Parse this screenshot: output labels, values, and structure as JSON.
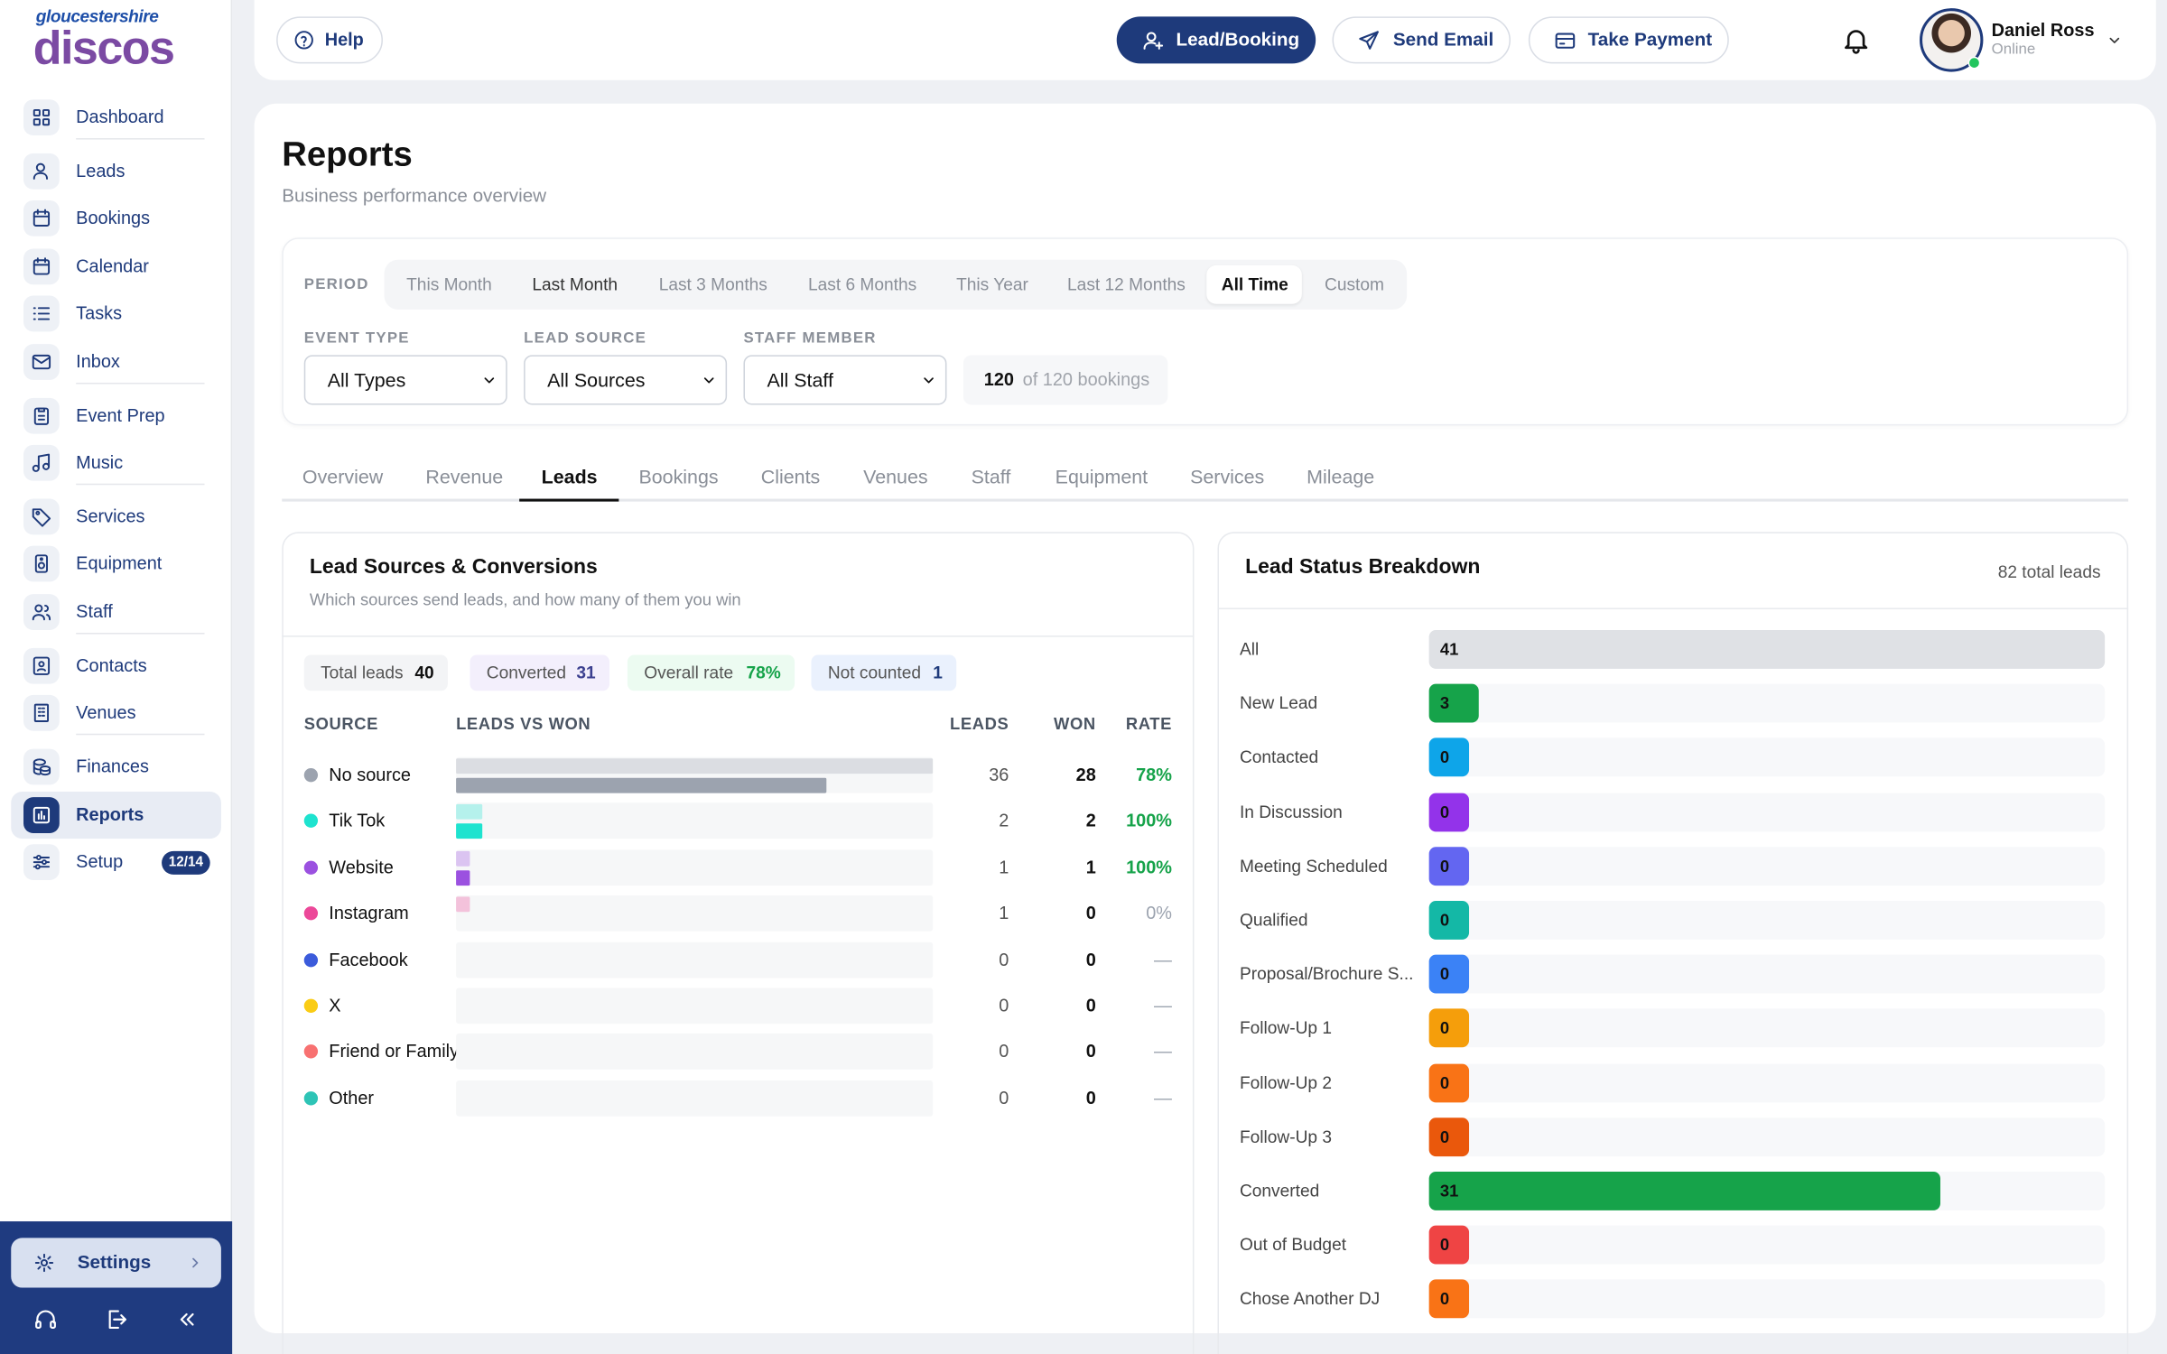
{
  "sidebar": {
    "logo": {
      "line1": "gloucestershire",
      "line2": "discos"
    },
    "nav": [
      [
        {
          "label": "Dashboard"
        }
      ],
      [
        {
          "label": "Leads"
        },
        {
          "label": "Bookings"
        },
        {
          "label": "Calendar"
        },
        {
          "label": "Tasks"
        },
        {
          "label": "Inbox"
        }
      ],
      [
        {
          "label": "Event Prep"
        },
        {
          "label": "Music"
        }
      ],
      [
        {
          "label": "Services"
        },
        {
          "label": "Equipment"
        },
        {
          "label": "Staff"
        }
      ],
      [
        {
          "label": "Contacts"
        },
        {
          "label": "Venues"
        }
      ],
      [
        {
          "label": "Finances"
        },
        {
          "label": "Reports"
        },
        {
          "label": "Setup",
          "badge": "12/14"
        }
      ]
    ],
    "footer": {
      "settings": "Settings"
    }
  },
  "header": {
    "help": "Help",
    "actions": [
      "Lead/Booking",
      "Send Email",
      "Take Payment"
    ],
    "user": {
      "name": "Daniel Ross",
      "status": "Online"
    }
  },
  "page": {
    "title": "Reports",
    "subtitle": "Business performance overview"
  },
  "filters": {
    "period_label": "PERIOD",
    "periods": [
      "This Month",
      "Last Month",
      "Last 3 Months",
      "Last 6 Months",
      "This Year",
      "Last 12 Months",
      "All Time",
      "Custom"
    ],
    "dropdowns": [
      {
        "label": "EVENT TYPE",
        "value": "All Types"
      },
      {
        "label": "LEAD SOURCE",
        "value": "All Sources"
      },
      {
        "label": "STAFF MEMBER",
        "value": "All Staff"
      }
    ],
    "count": 120,
    "count_text": "of 120 bookings"
  },
  "tabs": [
    "Overview",
    "Revenue",
    "Leads",
    "Bookings",
    "Clients",
    "Venues",
    "Staff",
    "Equipment",
    "Services",
    "Mileage"
  ],
  "lead_sources": {
    "title": "Lead Sources & Conversions",
    "subtitle": "Which sources send leads, and how many of them you win",
    "chips": [
      {
        "label": "Total leads",
        "value": 40
      },
      {
        "label": "Converted",
        "value": 31
      },
      {
        "label": "Overall rate",
        "value": "78%"
      },
      {
        "label": "Not counted",
        "value": 1
      }
    ],
    "columns": [
      "SOURCE",
      "LEADS VS WON",
      "LEADS",
      "WON",
      "RATE"
    ],
    "rows": [
      {
        "source": "No source",
        "color": "#9ca3af",
        "leads": 36,
        "won": 28,
        "rate": "78%"
      },
      {
        "source": "Tik Tok",
        "color": "#1ee3cf",
        "leads": 2,
        "won": 2,
        "rate": "100%"
      },
      {
        "source": "Website",
        "color": "#9b51e0",
        "leads": 1,
        "won": 1,
        "rate": "100%"
      },
      {
        "source": "Instagram",
        "color": "#ec4899",
        "leads": 1,
        "won": 0,
        "rate": "0%"
      },
      {
        "source": "Facebook",
        "color": "#3b5bdb",
        "leads": 0,
        "won": 0,
        "rate": "—"
      },
      {
        "source": "X",
        "color": "#facc15",
        "leads": 0,
        "won": 0,
        "rate": "—"
      },
      {
        "source": "Friend or Family",
        "color": "#f87171",
        "leads": 0,
        "won": 0,
        "rate": "—"
      },
      {
        "source": "Other",
        "color": "#2ec4b6",
        "leads": 0,
        "won": 0,
        "rate": "—"
      }
    ]
  },
  "lead_status": {
    "title": "Lead Status Breakdown",
    "total": "82 total leads",
    "rows": [
      {
        "label": "All",
        "value": 41,
        "color": "#dfe1e5"
      },
      {
        "label": "New Lead",
        "value": 3,
        "color": "#16a34a"
      },
      {
        "label": "Contacted",
        "value": 0,
        "color": "#0ea5e9"
      },
      {
        "label": "In Discussion",
        "value": 0,
        "color": "#9333ea"
      },
      {
        "label": "Meeting Scheduled",
        "value": 0,
        "color": "#6366f1"
      },
      {
        "label": "Qualified",
        "value": 0,
        "color": "#14b8a6"
      },
      {
        "label": "Proposal/Brochure S...",
        "value": 0,
        "color": "#3b82f6"
      },
      {
        "label": "Follow-Up 1",
        "value": 0,
        "color": "#f59e0b"
      },
      {
        "label": "Follow-Up 2",
        "value": 0,
        "color": "#f97316"
      },
      {
        "label": "Follow-Up 3",
        "value": 0,
        "color": "#ea580c"
      },
      {
        "label": "Converted",
        "value": 31,
        "color": "#16a34a"
      },
      {
        "label": "Out of Budget",
        "value": 0,
        "color": "#ef4444"
      },
      {
        "label": "Chose Another DJ",
        "value": 0,
        "color": "#f97316"
      }
    ]
  }
}
